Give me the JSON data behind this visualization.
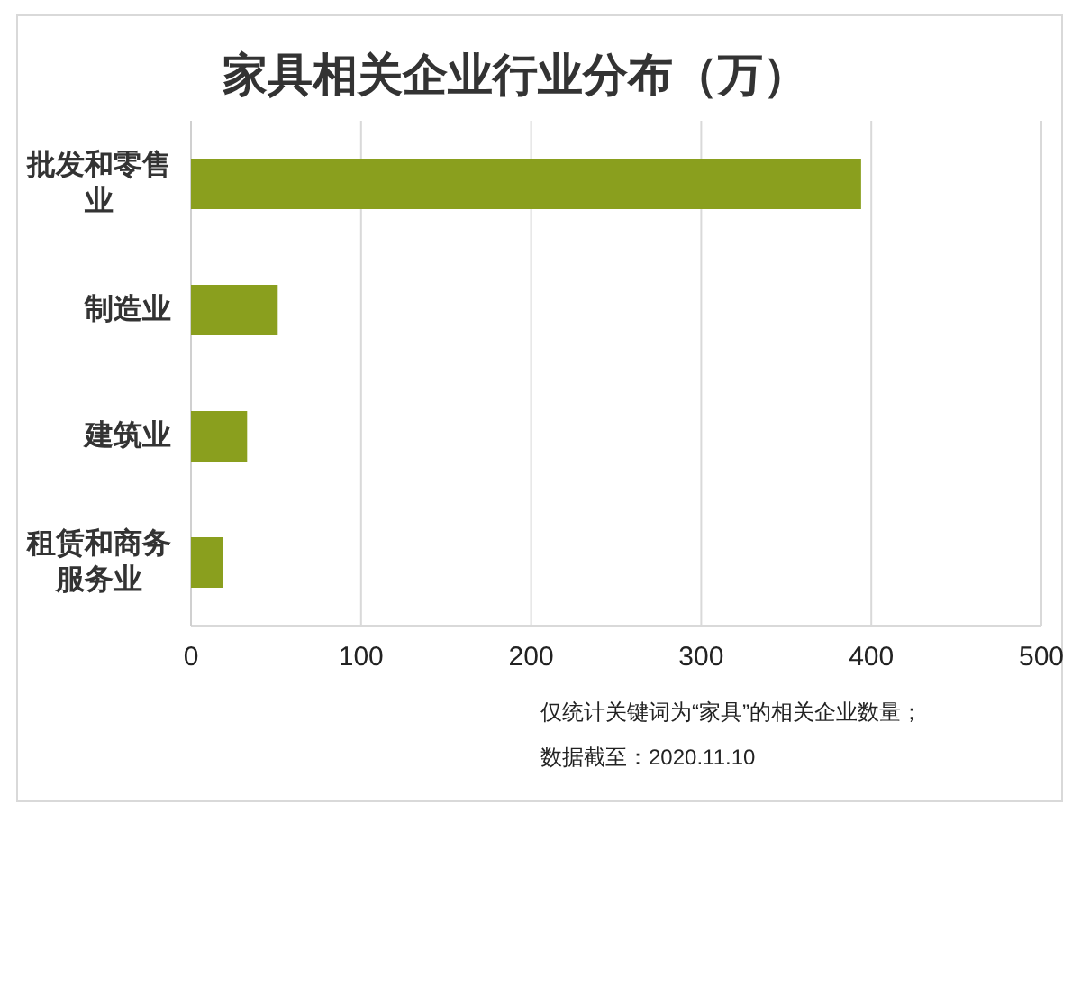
{
  "chart_data": {
    "type": "bar",
    "orientation": "horizontal",
    "title": "家具相关企业行业分布（万）",
    "categories": [
      "批发和零售业",
      "制造业",
      "建筑业",
      "租赁和商务服务业"
    ],
    "values": [
      394,
      51,
      33,
      19
    ],
    "color": "#8a9f1e",
    "xlim": [
      0,
      500
    ],
    "xticks": [
      0,
      100,
      200,
      300,
      400,
      500
    ],
    "grid": "x",
    "annotations": [
      "仅统计关键词为“家具”的相关企业数量；",
      "数据截至：2020.11.10"
    ]
  }
}
